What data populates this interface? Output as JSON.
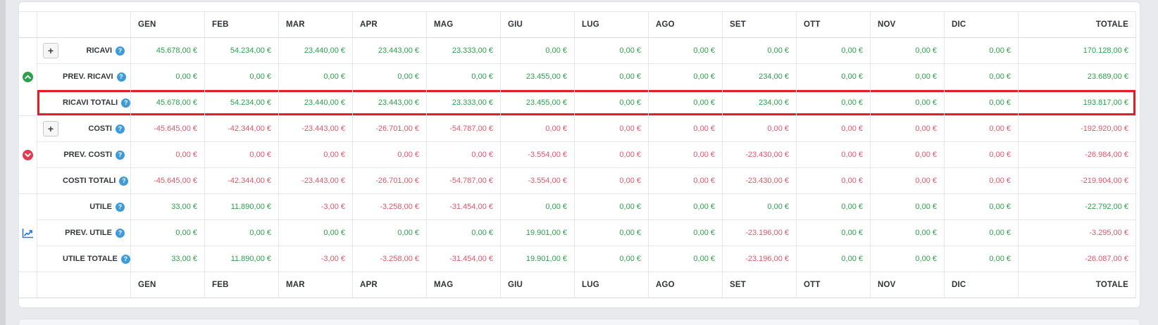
{
  "theme": {
    "green": "#2aa14a",
    "red": "#e2556a",
    "highlight_red": "#e41e25",
    "link_blue": "#2e7cd6",
    "help_blue": "#3d9bdc"
  },
  "columns": [
    "GEN",
    "FEB",
    "MAR",
    "APR",
    "MAG",
    "GIU",
    "LUG",
    "AGO",
    "SET",
    "OTT",
    "NOV",
    "DIC",
    "TOTALE"
  ],
  "help_glyph": "?",
  "expand_glyph": "+",
  "groups": [
    {
      "icon": "trend-up-circle-icon",
      "rows": [
        {
          "label": "RICAVI",
          "expandable": true,
          "highlight": false,
          "values": [
            "45.678,00 €",
            "54.234,00 €",
            "23.440,00 €",
            "23.443,00 €",
            "23.333,00 €",
            "0,00 €",
            "0,00 €",
            "0,00 €",
            "0,00 €",
            "0,00 €",
            "0,00 €",
            "0,00 €",
            "170.128,00 €"
          ],
          "colors": [
            "g",
            "g",
            "g",
            "g",
            "g",
            "g",
            "g",
            "g",
            "g",
            "g",
            "g",
            "g",
            "g"
          ]
        },
        {
          "label": "PREV. RICAVI",
          "expandable": false,
          "highlight": false,
          "values": [
            "0,00 €",
            "0,00 €",
            "0,00 €",
            "0,00 €",
            "0,00 €",
            "23.455,00 €",
            "0,00 €",
            "0,00 €",
            "234,00 €",
            "0,00 €",
            "0,00 €",
            "0,00 €",
            "23.689,00 €"
          ],
          "colors": [
            "g",
            "g",
            "g",
            "g",
            "g",
            "g",
            "g",
            "g",
            "g",
            "g",
            "g",
            "g",
            "g"
          ]
        },
        {
          "label": "RICAVI TOTALI",
          "expandable": false,
          "highlight": true,
          "values": [
            "45.678,00 €",
            "54.234,00 €",
            "23.440,00 €",
            "23.443,00 €",
            "23.333,00 €",
            "23.455,00 €",
            "0,00 €",
            "0,00 €",
            "234,00 €",
            "0,00 €",
            "0,00 €",
            "0,00 €",
            "193.817,00 €"
          ],
          "colors": [
            "g",
            "g",
            "g",
            "g",
            "g",
            "g",
            "g",
            "g",
            "g",
            "g",
            "g",
            "g",
            "g"
          ]
        }
      ]
    },
    {
      "icon": "trend-down-circle-icon",
      "rows": [
        {
          "label": "COSTI",
          "expandable": true,
          "highlight": false,
          "values": [
            "-45.645,00 €",
            "-42.344,00 €",
            "-23.443,00 €",
            "-26.701,00 €",
            "-54.787,00 €",
            "0,00 €",
            "0,00 €",
            "0,00 €",
            "0,00 €",
            "0,00 €",
            "0,00 €",
            "0,00 €",
            "-192.920,00 €"
          ],
          "colors": [
            "r",
            "r",
            "r",
            "r",
            "r",
            "r",
            "r",
            "r",
            "r",
            "r",
            "r",
            "r",
            "r"
          ]
        },
        {
          "label": "PREV. COSTI",
          "expandable": false,
          "highlight": false,
          "values": [
            "0,00 €",
            "0,00 €",
            "0,00 €",
            "0,00 €",
            "0,00 €",
            "-3.554,00 €",
            "0,00 €",
            "0,00 €",
            "-23.430,00 €",
            "0,00 €",
            "0,00 €",
            "0,00 €",
            "-26.984,00 €"
          ],
          "colors": [
            "r",
            "r",
            "r",
            "r",
            "r",
            "r",
            "r",
            "r",
            "r",
            "r",
            "r",
            "r",
            "r"
          ]
        },
        {
          "label": "COSTI TOTALI",
          "expandable": false,
          "highlight": false,
          "values": [
            "-45.645,00 €",
            "-42.344,00 €",
            "-23.443,00 €",
            "-26.701,00 €",
            "-54.787,00 €",
            "-3.554,00 €",
            "0,00 €",
            "0,00 €",
            "-23.430,00 €",
            "0,00 €",
            "0,00 €",
            "0,00 €",
            "-219.904,00 €"
          ],
          "colors": [
            "r",
            "r",
            "r",
            "r",
            "r",
            "r",
            "r",
            "r",
            "r",
            "r",
            "r",
            "r",
            "r"
          ]
        }
      ]
    },
    {
      "icon": "line-chart-icon",
      "rows": [
        {
          "label": "UTILE",
          "expandable": false,
          "highlight": false,
          "values": [
            "33,00 €",
            "11.890,00 €",
            "-3,00 €",
            "-3.258,00 €",
            "-31.454,00 €",
            "0,00 €",
            "0,00 €",
            "0,00 €",
            "0,00 €",
            "0,00 €",
            "0,00 €",
            "0,00 €",
            "-22.792,00 €"
          ],
          "colors": [
            "g",
            "g",
            "r",
            "r",
            "r",
            "g",
            "g",
            "g",
            "g",
            "g",
            "g",
            "g",
            "g"
          ]
        },
        {
          "label": "PREV. UTILE",
          "expandable": false,
          "highlight": false,
          "values": [
            "0,00 €",
            "0,00 €",
            "0,00 €",
            "0,00 €",
            "0,00 €",
            "19.901,00 €",
            "0,00 €",
            "0,00 €",
            "-23.196,00 €",
            "0,00 €",
            "0,00 €",
            "0,00 €",
            "-3.295,00 €"
          ],
          "colors": [
            "g",
            "g",
            "g",
            "g",
            "g",
            "g",
            "g",
            "g",
            "r",
            "g",
            "g",
            "g",
            "r"
          ]
        },
        {
          "label": "UTILE TOTALE",
          "expandable": false,
          "highlight": false,
          "values": [
            "33,00 €",
            "11.890,00 €",
            "-3,00 €",
            "-3.258,00 €",
            "-31.454,00 €",
            "19.901,00 €",
            "0,00 €",
            "0,00 €",
            "-23.196,00 €",
            "0,00 €",
            "0,00 €",
            "0,00 €",
            "-26.087,00 €"
          ],
          "colors": [
            "g",
            "g",
            "r",
            "r",
            "r",
            "g",
            "g",
            "g",
            "r",
            "g",
            "g",
            "g",
            "r"
          ]
        }
      ]
    }
  ]
}
